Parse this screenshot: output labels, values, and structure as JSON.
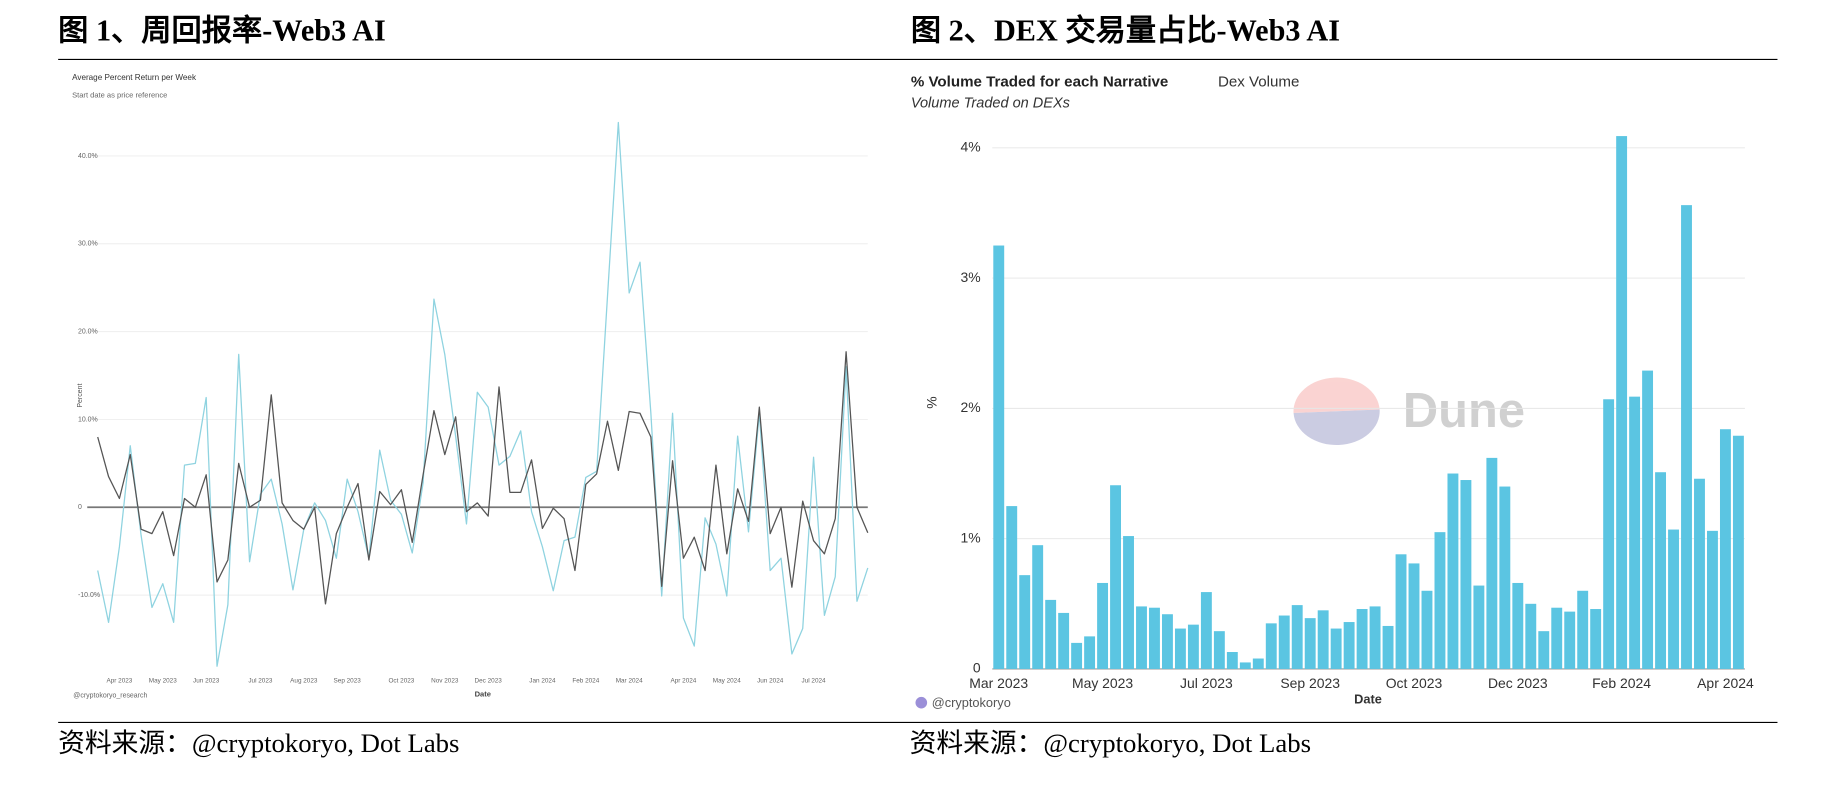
{
  "headings": [
    "图 1、周回报率-Web3 AI",
    "图 2、DEX 交易量占比-Web3 AI"
  ],
  "sources": [
    "资料来源：@cryptokoryo, Dot Labs",
    "资料来源：@cryptokoryo, Dot Labs"
  ],
  "chart_data": [
    {
      "type": "line",
      "title": "Average Percent Return per Week",
      "subtitle": "Start date as price reference",
      "y_label": "Percent",
      "x_label": "Date",
      "credit": "@cryptokoryo_research",
      "categories": [
        null,
        null,
        "Apr 2023",
        null,
        null,
        null,
        "May 2023",
        null,
        null,
        null,
        "Jun 2023",
        null,
        null,
        null,
        null,
        "Jul 2023",
        null,
        null,
        null,
        "Aug 2023",
        null,
        null,
        null,
        "Sep 2023",
        null,
        null,
        null,
        null,
        "Oct 2023",
        null,
        null,
        null,
        "Nov 2023",
        null,
        null,
        null,
        "Dec 2023",
        null,
        null,
        null,
        null,
        "Jan 2024",
        null,
        null,
        null,
        "Feb 2024",
        null,
        null,
        null,
        "Mar 2024",
        null,
        null,
        null,
        null,
        "Apr 2024",
        null,
        null,
        null,
        "May 2024",
        null,
        null,
        null,
        "Jun 2024",
        null,
        null,
        null,
        "Jul 2024",
        null,
        null,
        null,
        null,
        null
      ],
      "series": [
        {
          "color": "#8fd3e0",
          "values": [
            -7.2,
            -13.1,
            -4.5,
            7,
            -3.2,
            -11.4,
            -8.7,
            -13.1,
            4.8,
            5,
            12.5,
            -18.1,
            -11.1,
            17.4,
            -6.2,
            1.5,
            3.2,
            -1.9,
            -9.4,
            -2.5,
            0.5,
            -1.5,
            -5.8,
            3.2,
            -0.5,
            -5.8,
            6.5,
            0.8,
            -0.8,
            -5.2,
            2.8,
            23.7,
            17.4,
            8.1,
            -1.9,
            13.1,
            11.4,
            4.8,
            5.8,
            8.7,
            -0.5,
            -4.5,
            -9.5,
            -3.8,
            -3.4,
            3.4,
            4.1,
            24,
            43.8,
            24.4,
            27.9,
            10.7,
            -10.1,
            10.7,
            -12.6,
            -15.8,
            -1.2,
            -4.2,
            -10.1,
            8.1,
            -2.8,
            10.7,
            -7.2,
            -5.8,
            -16.7,
            -13.8,
            5.7,
            -12.3,
            -7.9,
            16,
            -10.7,
            -6.9
          ]
        },
        {
          "color": "#555555",
          "values": [
            8,
            3.5,
            1,
            6,
            -2.5,
            -3,
            -0.5,
            -5.5,
            1,
            0,
            3.7,
            -8.5,
            -6,
            5,
            0,
            0.8,
            12.8,
            0.5,
            -1.5,
            -2.5,
            0,
            -11,
            -3,
            0,
            2.7,
            -6,
            1.8,
            0.3,
            2,
            -4,
            3.7,
            11,
            6,
            10.3,
            -0.5,
            0.5,
            -1,
            13.7,
            1.7,
            1.7,
            5.4,
            -2.4,
            -0.1,
            -1.3,
            -7.2,
            2.6,
            3.8,
            9.8,
            4.2,
            10.9,
            10.7,
            8,
            -9,
            5.3,
            -5.8,
            -3.4,
            -7.2,
            4.8,
            -5.3,
            2.1,
            -1.6,
            11.4,
            -3,
            0,
            -9.1,
            0.7,
            -3.8,
            -5.3,
            -1.3,
            17.7,
            0,
            -2.9
          ]
        }
      ],
      "ylim": [
        -19,
        44.5
      ],
      "yticks": [
        {
          "value": -10,
          "label": "-10.0%"
        },
        0,
        {
          "value": 10,
          "label": "10.0%"
        },
        {
          "value": 20,
          "label": "20.0%"
        },
        {
          "value": 30,
          "label": "30.0%"
        },
        {
          "value": 40,
          "label": "40.0%"
        }
      ],
      "grid": true
    },
    {
      "type": "bar",
      "title": "% Volume Traded for each Narrative",
      "query_name": "Dex Volume",
      "subtitle": "Volume Traded on DEXs",
      "y_label": "%",
      "x_label": "Date",
      "credit": "@cryptokoryo",
      "watermark": "Dune",
      "categories": [
        "Mar 2023",
        null,
        null,
        null,
        null,
        null,
        null,
        null,
        "May 2023",
        null,
        null,
        null,
        null,
        null,
        null,
        null,
        "Jul 2023",
        null,
        null,
        null,
        null,
        null,
        null,
        null,
        "Sep 2023",
        null,
        null,
        null,
        null,
        null,
        null,
        null,
        "Oct 2023",
        null,
        null,
        null,
        null,
        null,
        null,
        null,
        "Dec 2023",
        null,
        null,
        null,
        null,
        null,
        null,
        null,
        "Feb 2024",
        null,
        null,
        null,
        null,
        null,
        null,
        null,
        "Apr 2024",
        null
      ],
      "values": [
        3.25,
        1.25,
        0.72,
        0.95,
        0.53,
        0.43,
        0.2,
        0.25,
        0.66,
        1.41,
        1.02,
        0.48,
        0.47,
        0.42,
        0.31,
        0.34,
        0.59,
        0.29,
        0.13,
        0.05,
        0.08,
        0.35,
        0.41,
        0.49,
        0.39,
        0.45,
        0.31,
        0.36,
        0.46,
        0.48,
        0.33,
        0.88,
        0.81,
        0.6,
        1.05,
        1.5,
        1.45,
        0.64,
        1.62,
        1.4,
        0.66,
        0.5,
        0.29,
        0.47,
        0.44,
        0.6,
        0.46,
        2.07,
        4.09,
        2.09,
        2.29,
        1.51,
        1.07,
        3.56,
        1.46,
        1.06,
        1.84,
        1.79
      ],
      "color": "#5bc5e2",
      "ylim": [
        0,
        4.2
      ],
      "yticks": [
        0,
        {
          "value": 1,
          "label": "1%"
        },
        {
          "value": 2,
          "label": "2%"
        },
        {
          "value": 3,
          "label": "3%"
        },
        {
          "value": 4,
          "label": "4%"
        }
      ],
      "grid": true
    }
  ]
}
